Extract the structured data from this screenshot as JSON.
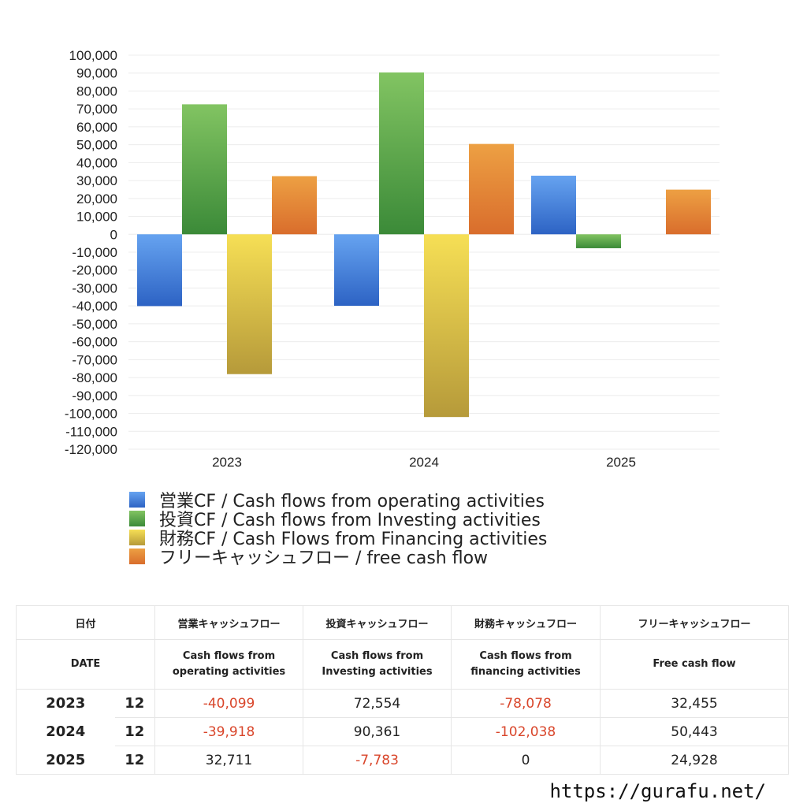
{
  "chart_data": {
    "type": "bar",
    "categories": [
      "2023",
      "2024",
      "2025"
    ],
    "series": [
      {
        "name": "営業CF / Cash flows from operating activities",
        "values": [
          -40099,
          -39918,
          32711
        ],
        "color_top": "#66a3f0",
        "color_bottom": "#2d63c4"
      },
      {
        "name": "投資CF / Cash flows from Investing activities",
        "values": [
          72554,
          90361,
          -7783
        ],
        "color_top": "#82c462",
        "color_bottom": "#3b8a38"
      },
      {
        "name": "財務CF / Cash Flows from Financing activities",
        "values": [
          -78078,
          -102038,
          0
        ],
        "color_top": "#f6df55",
        "color_bottom": "#b69a3a"
      },
      {
        "name": "フリーキャッシュフロー / free cash flow",
        "values": [
          32455,
          50443,
          24928
        ],
        "color_top": "#eda043",
        "color_bottom": "#d96d2c"
      }
    ],
    "ylim": [
      -120000,
      100000
    ],
    "ytick_step": 10000,
    "grid": true,
    "legend_position": "bottom-left"
  },
  "table": {
    "header_row1": {
      "date": "日付",
      "operating": "営業キャッシュフロー",
      "investing": "投資キャッシュフロー",
      "financing": "財務キャッシュフロー",
      "free": "フリーキャッシュフロー"
    },
    "header_row2": {
      "date": "DATE",
      "operating_l1": "Cash flows from",
      "operating_l2": "operating activities",
      "investing_l1": "Cash flows from",
      "investing_l2": "Investing activities",
      "financing_l1": "Cash flows from",
      "financing_l2": "financing activities",
      "free": "Free cash flow"
    },
    "rows": [
      {
        "year": "2023",
        "month": "12",
        "operating": "-40,099",
        "investing": "72,554",
        "financing": "-78,078",
        "free": "32,455"
      },
      {
        "year": "2024",
        "month": "12",
        "operating": "-39,918",
        "investing": "90,361",
        "financing": "-102,038",
        "free": "50,443"
      },
      {
        "year": "2025",
        "month": "12",
        "operating": "32,711",
        "investing": "-7,783",
        "financing": "0",
        "free": "24,928"
      }
    ],
    "negative_color": "#d9462b"
  },
  "footer": {
    "url": "https://gurafu.net/"
  }
}
